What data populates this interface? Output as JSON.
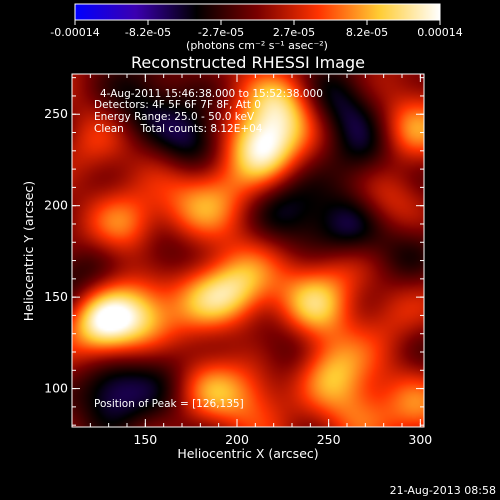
{
  "colorbar": {
    "tick_labels": [
      "-0.00014",
      "-8.2e-05",
      "-2.7e-05",
      "2.7e-05",
      "8.2e-05",
      "0.00014"
    ],
    "unit_label": "(photons cm⁻² s⁻¹ asec⁻²)",
    "range": [
      -0.00014,
      0.00014
    ],
    "stops": [
      "#0000ff",
      "#3b00b0",
      "#000000",
      "#7a0000",
      "#ff3300",
      "#ffcc33",
      "#ffffff"
    ]
  },
  "chart_data": {
    "type": "heatmap",
    "title": "Reconstructed RHESSI Image",
    "xlabel": "Heliocentric X (arcsec)",
    "ylabel": "Heliocentric Y (arcsec)",
    "xlim": [
      110,
      302
    ],
    "ylim": [
      79,
      272
    ],
    "xticks": [
      150,
      200,
      250,
      300
    ],
    "yticks": [
      100,
      150,
      200,
      250
    ],
    "annotations": {
      "time_range": "4-Aug-2011 15:46:38.000 to 15:52:38.000",
      "detectors": "Detectors: 4F 5F 6F 7F 8F, Att 0",
      "energy_range": "Energy Range: 25.0 - 50.0 keV",
      "clean": "Clean     Total counts: 8.12E+04",
      "peak": "Position of Peak = [126,135]"
    },
    "sources": [
      {
        "x": 126,
        "y": 135,
        "amp": 1.0
      },
      {
        "x": 213,
        "y": 232,
        "amp": 0.95
      },
      {
        "x": 225,
        "y": 255,
        "amp": 0.6
      },
      {
        "x": 200,
        "y": 155,
        "amp": 0.65
      },
      {
        "x": 240,
        "y": 145,
        "amp": 0.55
      },
      {
        "x": 255,
        "y": 165,
        "amp": 0.35
      },
      {
        "x": 150,
        "y": 140,
        "amp": 0.55
      },
      {
        "x": 180,
        "y": 150,
        "amp": 0.5
      },
      {
        "x": 140,
        "y": 190,
        "amp": 0.55
      },
      {
        "x": 170,
        "y": 195,
        "amp": 0.35
      },
      {
        "x": 190,
        "y": 210,
        "amp": 0.4
      },
      {
        "x": 250,
        "y": 110,
        "amp": 0.6
      },
      {
        "x": 265,
        "y": 85,
        "amp": 0.45
      },
      {
        "x": 295,
        "y": 240,
        "amp": 0.5
      },
      {
        "x": 280,
        "y": 205,
        "amp": 0.35
      },
      {
        "x": 120,
        "y": 230,
        "amp": 0.3
      },
      {
        "x": 285,
        "y": 140,
        "amp": 0.3
      },
      {
        "x": 185,
        "y": 100,
        "amp": 0.4
      },
      {
        "x": 210,
        "y": 95,
        "amp": 0.35
      },
      {
        "x": 300,
        "y": 90,
        "amp": 0.35
      },
      {
        "x": 260,
        "y": 190,
        "amp": -0.5
      },
      {
        "x": 175,
        "y": 235,
        "amp": -0.45
      },
      {
        "x": 130,
        "y": 95,
        "amp": -0.55
      },
      {
        "x": 145,
        "y": 255,
        "amp": -0.35
      },
      {
        "x": 270,
        "y": 225,
        "amp": -0.4
      },
      {
        "x": 160,
        "y": 175,
        "amp": -0.3
      },
      {
        "x": 230,
        "y": 200,
        "amp": -0.3
      },
      {
        "x": 115,
        "y": 160,
        "amp": -0.35
      },
      {
        "x": 255,
        "y": 255,
        "amp": -0.35
      },
      {
        "x": 290,
        "y": 175,
        "amp": -0.3
      },
      {
        "x": 230,
        "y": 125,
        "amp": -0.25
      },
      {
        "x": 160,
        "y": 115,
        "amp": -0.3
      }
    ]
  },
  "footer": {
    "timestamp": "21-Aug-2013 08:58"
  }
}
